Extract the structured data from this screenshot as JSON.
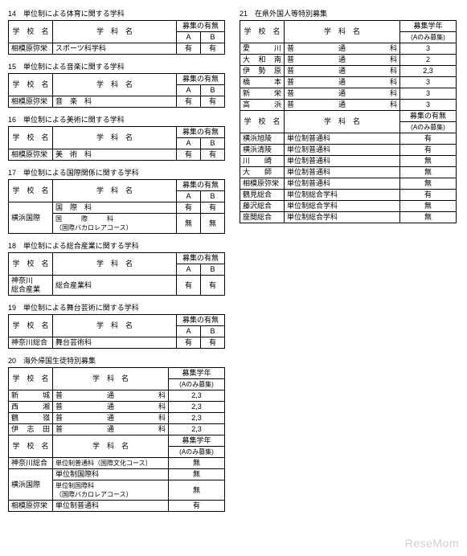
{
  "labels": {
    "school": "学　校　名",
    "dept": "学　科　名",
    "boshu": "募集の有無",
    "A": "A",
    "B": "B",
    "grade": "募集学年",
    "gradeNote": "(Aのみ募集)"
  },
  "left": [
    {
      "title": "14　単位制による体育に関する学科",
      "type": "ab",
      "rows": [
        {
          "school": "相模原弥栄",
          "dept": "スポーツ科学科",
          "a": "有",
          "b": "有"
        }
      ]
    },
    {
      "title": "15　単位制による音楽に関する学科",
      "type": "ab",
      "rows": [
        {
          "school": "相模原弥栄",
          "dept": "音　楽　科",
          "a": "有",
          "b": "有"
        }
      ]
    },
    {
      "title": "16　単位制による美術に関する学科",
      "type": "ab",
      "rows": [
        {
          "school": "相模原弥栄",
          "dept": "美　術　科",
          "a": "有",
          "b": "有"
        }
      ]
    },
    {
      "title": "17　単位制による国際関係に関する学科",
      "type": "ab",
      "rows": [
        {
          "school": "横浜国際",
          "dept": "国　際　科",
          "a": "有",
          "b": "有",
          "schoolRowspan": 2
        },
        {
          "dept": "国　　　際　　　科\n（国際バカロレアコース）",
          "a": "無",
          "b": "無",
          "deptSmall": true
        }
      ]
    },
    {
      "title": "18　単位制による総合産業に関する学科",
      "type": "ab",
      "rows": [
        {
          "school": "神奈川\n総合産業",
          "dept": "総合産業科",
          "a": "有",
          "b": "有"
        }
      ]
    },
    {
      "title": "19　単位制による舞台芸術に関する学科",
      "type": "ab",
      "rows": [
        {
          "school": "神奈川総合",
          "dept": "舞台芸術科",
          "a": "有",
          "b": "有"
        }
      ]
    },
    {
      "title": "20　海外帰国生徒特別募集",
      "type": "grade2",
      "block1": [
        {
          "school": "新　　城",
          "dept": "普　通　科",
          "g": "2,3"
        },
        {
          "school": "西　　湘",
          "dept": "普　通　科",
          "g": "2,3"
        },
        {
          "school": "鶴　　嶺",
          "dept": "普　通　科",
          "g": "2,3"
        },
        {
          "school": "伊 志 田",
          "dept": "普　通　科",
          "g": "2,3"
        }
      ],
      "block2": [
        {
          "school": "神奈川総合",
          "dept": "単位制普通科（国際文化コース）",
          "g": "無",
          "deptSmall": true
        },
        {
          "school": "横浜国際",
          "dept": "単位制国際科",
          "g": "無",
          "schoolRowspan": 2
        },
        {
          "dept": "単位制国際科\n（国際バカロレアコース）",
          "g": "無",
          "deptSmall": true
        },
        {
          "school": "相模原弥栄",
          "dept": "単位制普通科",
          "g": "有"
        }
      ]
    }
  ],
  "right": [
    {
      "title": "21　在県外国人等特別募集",
      "type": "gradeR",
      "block1": [
        {
          "school": "愛　　川",
          "dept": "普　通　科",
          "g": "3"
        },
        {
          "school": "大 和 南",
          "dept": "普　通　科",
          "g": "2"
        },
        {
          "school": "伊 勢 原",
          "dept": "普　通　科",
          "g": "2,3"
        },
        {
          "school": "橋　　本",
          "dept": "普　通　科",
          "g": "3"
        },
        {
          "school": "新　　栄",
          "dept": "普　通　科",
          "g": "3"
        },
        {
          "school": "高　　浜",
          "dept": "普　通　科",
          "g": "3"
        }
      ],
      "block2": [
        {
          "school": "横浜旭陵",
          "dept": "単位制普通科",
          "g": "有"
        },
        {
          "school": "横浜清陵",
          "dept": "単位制普通科",
          "g": "有"
        },
        {
          "school": "川　　崎",
          "dept": "単位制普通科",
          "g": "無"
        },
        {
          "school": "大　　師",
          "dept": "単位制普通科",
          "g": "無"
        },
        {
          "school": "相模原弥栄",
          "dept": "単位制普通科",
          "g": "無"
        },
        {
          "school": "鶴見総合",
          "dept": "単位制総合学科",
          "g": "有"
        },
        {
          "school": "藤沢総合",
          "dept": "単位制総合学科",
          "g": "無"
        },
        {
          "school": "座間総合",
          "dept": "単位制総合学科",
          "g": "無"
        }
      ]
    }
  ],
  "watermark": "ReseMom"
}
